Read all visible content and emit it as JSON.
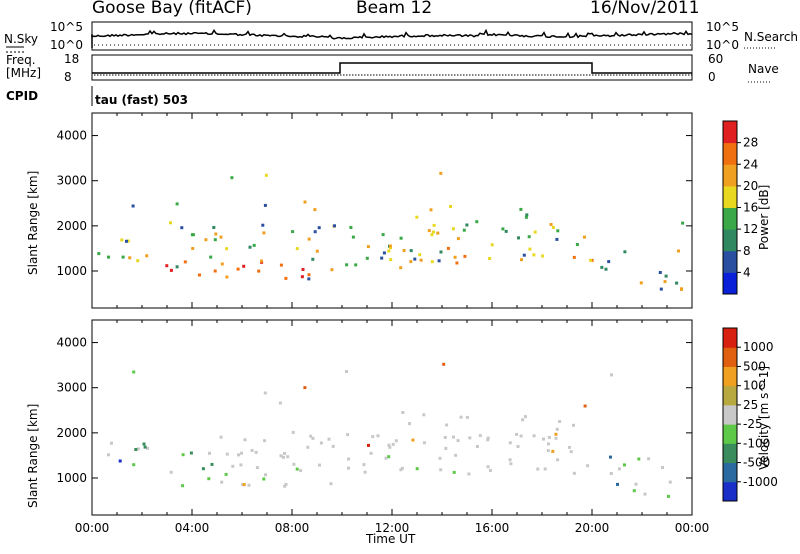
{
  "header": {
    "station": "Goose Bay (fitACF)",
    "beam": "Beam 12",
    "date": "16/Nov/2011"
  },
  "panels": {
    "nsky_label": "N.Sky",
    "nsky_ticks": [
      "10^5",
      "10^0"
    ],
    "nsearch_label": "N.Search",
    "nsearch_ticks": [
      "10^5",
      "10^0"
    ],
    "freq_label_1": "Freq.",
    "freq_label_2": "[MHz]",
    "freq_ticks": [
      "18",
      "8"
    ],
    "nave_label": "Nave",
    "nave_ticks": [
      "60",
      "0"
    ],
    "cpid_label": "CPID",
    "cpid_value": "tau (fast) 503"
  },
  "chart_data": [
    {
      "type": "heatmap",
      "name": "power",
      "ylabel": "Slant Range [km]",
      "ylim": [
        180,
        4500
      ],
      "yticks": [
        "1000",
        "2000",
        "3000",
        "4000"
      ],
      "xticks": [
        "00:00",
        "04:00",
        "08:00",
        "12:00",
        "16:00",
        "20:00",
        "00:00"
      ],
      "colorbar_label": "Power [dB]",
      "colorbar_ticks": [
        "28",
        "24",
        "20",
        "16",
        "12",
        "8",
        "4"
      ],
      "colors": [
        "#0a1fd8",
        "#2a4fa0",
        "#2f8860",
        "#3aa848",
        "#e8d820",
        "#f0a020",
        "#f07010",
        "#e02020"
      ]
    },
    {
      "type": "heatmap",
      "name": "velocity",
      "ylabel": "Slant Range [km]",
      "ylim": [
        180,
        4500
      ],
      "yticks": [
        "1000",
        "2000",
        "3000",
        "4000"
      ],
      "xticks": [
        "00:00",
        "04:00",
        "08:00",
        "12:00",
        "16:00",
        "20:00",
        "00:00"
      ],
      "xlabel": "Time UT",
      "colorbar_label": "Velocity [m s^-1]",
      "colorbar_ticks": [
        "1000",
        "500",
        "100",
        "25",
        "-25",
        "-100",
        "-500",
        "-1000"
      ],
      "colors": [
        "#1a2fc8",
        "#2a6aa0",
        "#3a8c5c",
        "#5ec848",
        "#c8c8c8",
        "#b8a840",
        "#f0a020",
        "#e06010",
        "#d82010"
      ]
    }
  ]
}
